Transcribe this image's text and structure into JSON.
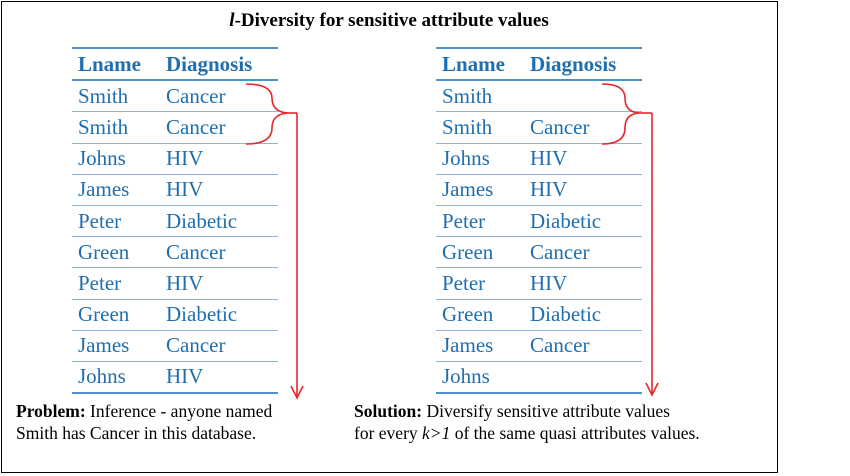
{
  "title": {
    "italic": "l",
    "rest": "-Diversity for sensitive attribute values"
  },
  "left_table": {
    "headers": [
      "Lname",
      "Diagnosis"
    ],
    "rows": [
      [
        "Smith",
        "Cancer"
      ],
      [
        "Smith",
        "Cancer"
      ],
      [
        "Johns",
        "HIV"
      ],
      [
        "James",
        "HIV"
      ],
      [
        "Peter",
        "Diabetic"
      ],
      [
        "Green",
        "Cancer"
      ],
      [
        "Peter",
        "HIV"
      ],
      [
        "Green",
        "Diabetic"
      ],
      [
        "James",
        "Cancer"
      ],
      [
        "Johns",
        "HIV"
      ]
    ]
  },
  "right_table": {
    "headers": [
      "Lname",
      "Diagnosis"
    ],
    "rows": [
      [
        "Smith",
        ""
      ],
      [
        "Smith",
        "Cancer"
      ],
      [
        "Johns",
        "HIV"
      ],
      [
        "James",
        "HIV"
      ],
      [
        "Peter",
        "Diabetic"
      ],
      [
        "Green",
        "Cancer"
      ],
      [
        "Peter",
        "HIV"
      ],
      [
        "Green",
        "Diabetic"
      ],
      [
        "James",
        "Cancer"
      ],
      [
        "Johns",
        ""
      ]
    ]
  },
  "problem": {
    "label": "Problem:",
    "line1": "Inference - anyone named",
    "line2": "Smith has Cancer in this database."
  },
  "solution": {
    "label": "Solution:",
    "line1": "Diversify sensitive attribute values",
    "line2_prefix": "for every ",
    "line2_var": "k>1",
    "line2_suffix": " of the same quasi attributes values."
  },
  "colors": {
    "table_text": "#1f6fb0",
    "rule": "#4f8fca",
    "arrow": "#e8262b"
  }
}
